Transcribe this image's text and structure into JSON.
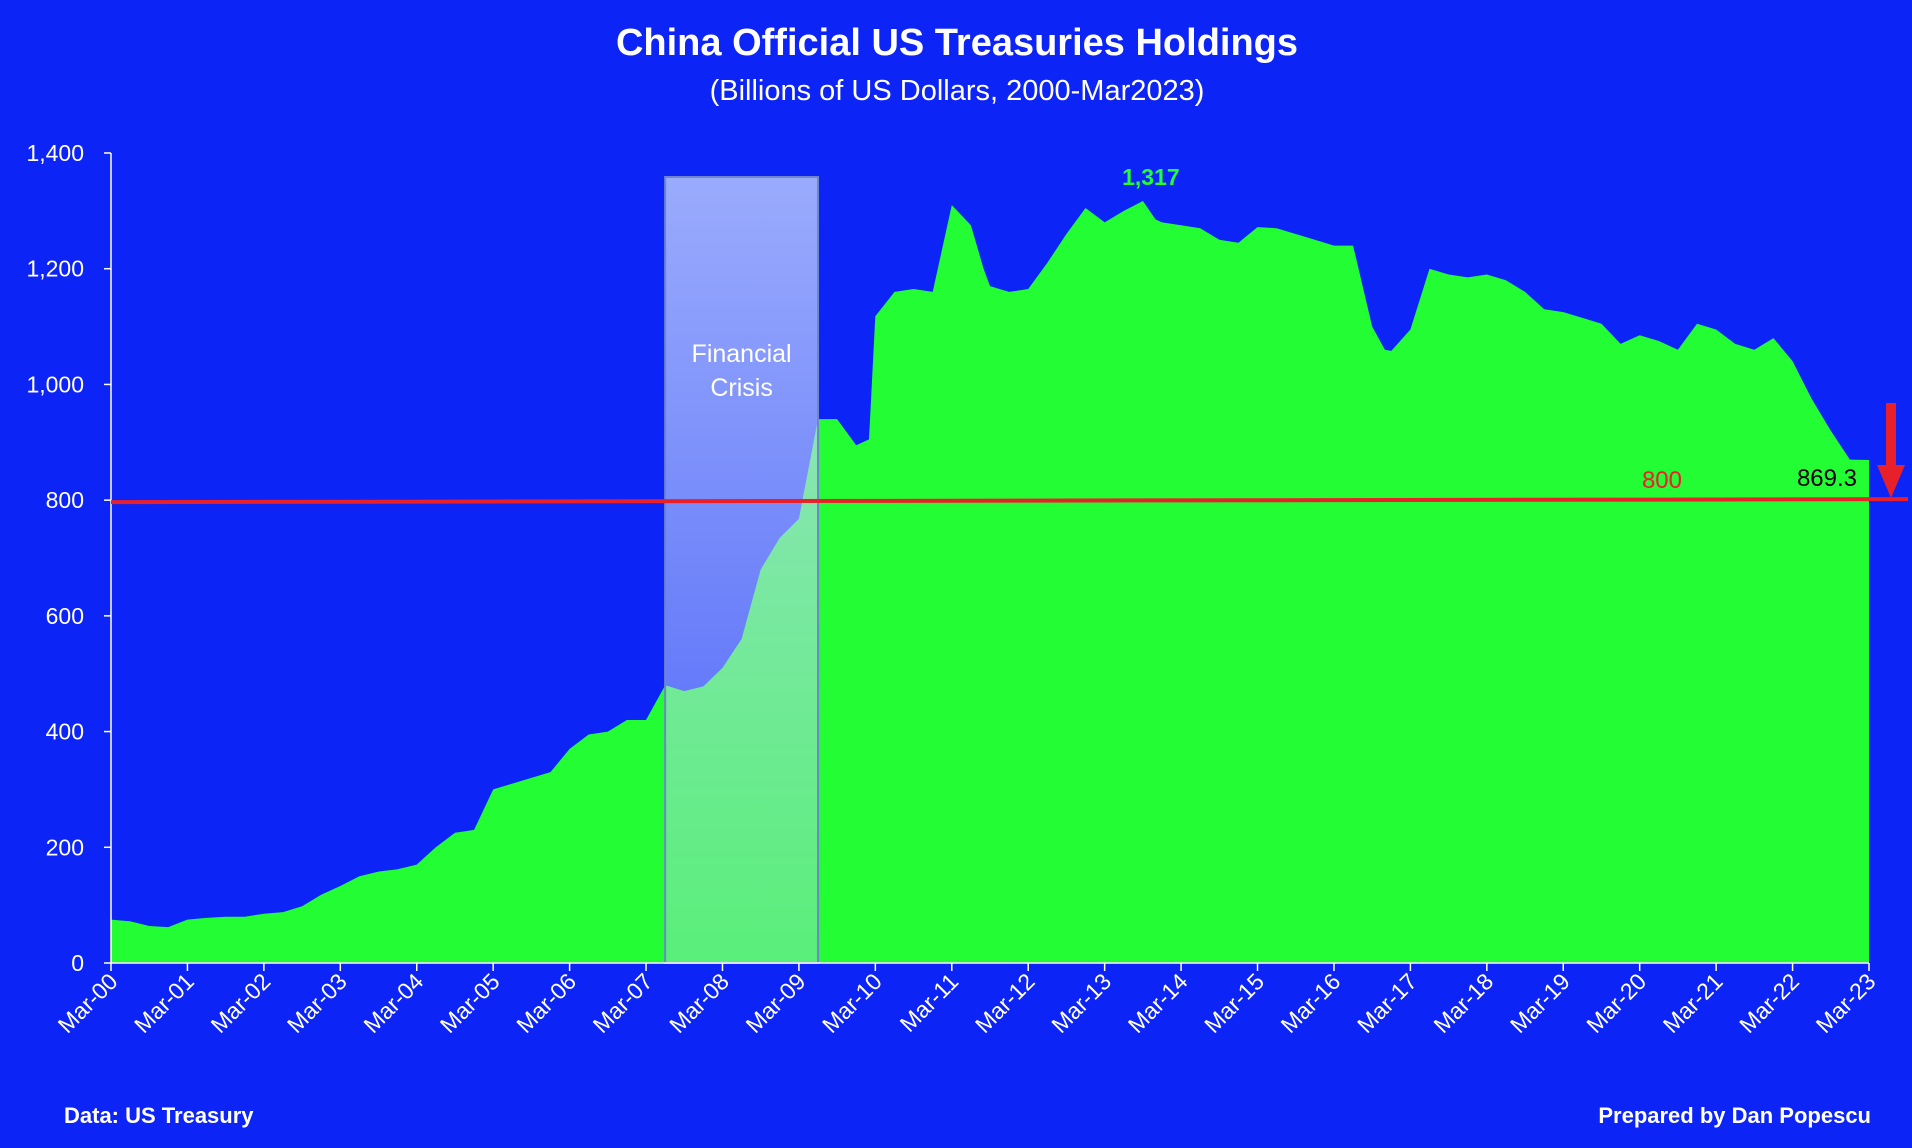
{
  "chart_data": {
    "type": "area",
    "title": "China Official US Treasuries Holdings",
    "subtitle": "(Billions of US Dollars, 2000-Mar2023)",
    "ylim": [
      0,
      1400
    ],
    "yticks": [
      "0",
      "200",
      "400",
      "600",
      "800",
      "1,000",
      "1,200",
      "1,400"
    ],
    "xticks": [
      "Mar-00",
      "Mar-01",
      "Mar-02",
      "Mar-03",
      "Mar-04",
      "Mar-05",
      "Mar-06",
      "Mar-07",
      "Mar-08",
      "Mar-09",
      "Mar-10",
      "Mar-11",
      "Mar-12",
      "Mar-13",
      "Mar-14",
      "Mar-15",
      "Mar-16",
      "Mar-17",
      "Mar-18",
      "Mar-19",
      "Mar-20",
      "Mar-21",
      "Mar-22",
      "Mar-23"
    ],
    "grid": false,
    "area_color": "#23fd33",
    "series": [
      {
        "x": [
          "Mar-00",
          "Jun-00",
          "Sep-00",
          "Dec-00",
          "Mar-01",
          "Jun-01",
          "Sep-01",
          "Dec-01",
          "Mar-02",
          "Jun-02",
          "Sep-02",
          "Dec-02",
          "Mar-03",
          "Jun-03",
          "Sep-03",
          "Dec-03",
          "Mar-04",
          "Jun-04",
          "Sep-04",
          "Dec-04",
          "Mar-05",
          "Jun-05",
          "Sep-05",
          "Dec-05",
          "Mar-06",
          "Jun-06",
          "Sep-06",
          "Dec-06",
          "Mar-07",
          "Jun-07",
          "Sep-07",
          "Dec-07",
          "Mar-08",
          "Jun-08",
          "Sep-08",
          "Dec-08",
          "Mar-09",
          "Jun-09",
          "Sep-09",
          "Dec-09",
          "Feb-10",
          "Mar-10",
          "Jun-10",
          "Sep-10",
          "Dec-10",
          "Mar-11",
          "Jun-11",
          "Aug-11",
          "Sep-11",
          "Dec-11",
          "Mar-12",
          "Jun-12",
          "Sep-12",
          "Dec-12",
          "Mar-13",
          "Jun-13",
          "Sep-13",
          "Nov-13",
          "Dec-13",
          "Mar-14",
          "Jun-14",
          "Sep-14",
          "Dec-14",
          "Mar-15",
          "Jun-15",
          "Sep-15",
          "Dec-15",
          "Mar-16",
          "Jun-16",
          "Sep-16",
          "Nov-16",
          "Dec-16",
          "Mar-17",
          "Jun-17",
          "Sep-17",
          "Dec-17",
          "Mar-18",
          "Jun-18",
          "Sep-18",
          "Dec-18",
          "Mar-19",
          "Jun-19",
          "Sep-19",
          "Dec-19",
          "Mar-20",
          "Jun-20",
          "Sep-20",
          "Dec-20",
          "Mar-21",
          "Jun-21",
          "Sep-21",
          "Dec-21",
          "Mar-22",
          "Jun-22",
          "Sep-22",
          "Dec-22",
          "Mar-23"
        ],
        "values": [
          75,
          72,
          64,
          62,
          75,
          78,
          80,
          80,
          85,
          88,
          98,
          118,
          133,
          150,
          158,
          162,
          170,
          200,
          225,
          230,
          300,
          310,
          320,
          330,
          370,
          395,
          400,
          420,
          420,
          480,
          470,
          478,
          510,
          560,
          680,
          735,
          768,
          940,
          940,
          895,
          905,
          1118,
          1160,
          1165,
          1160,
          1310,
          1275,
          1200,
          1170,
          1160,
          1165,
          1210,
          1260,
          1305,
          1280,
          1300,
          1317,
          1285,
          1280,
          1275,
          1270,
          1250,
          1245,
          1272,
          1270,
          1260,
          1250,
          1240,
          1240,
          1100,
          1060,
          1058,
          1095,
          1200,
          1190,
          1185,
          1190,
          1180,
          1160,
          1130,
          1125,
          1115,
          1105,
          1070,
          1085,
          1075,
          1060,
          1105,
          1095,
          1070,
          1060,
          1080,
          1040,
          975,
          920,
          870,
          869.3
        ]
      }
    ],
    "annotations": {
      "crisis_band": {
        "from": "Jun-07",
        "to": "Jun-09",
        "label_line1": "Financial",
        "label_line2": "Crisis"
      },
      "peak_label": "1,317",
      "reference_line": {
        "value": 800,
        "label": "800",
        "color": "#e8202a"
      },
      "last_value_label": "869.3",
      "peak_label_color": "#23fd33"
    }
  },
  "footer": {
    "source": "Data: US Treasury",
    "credit": "Prepared by Dan Popescu"
  }
}
